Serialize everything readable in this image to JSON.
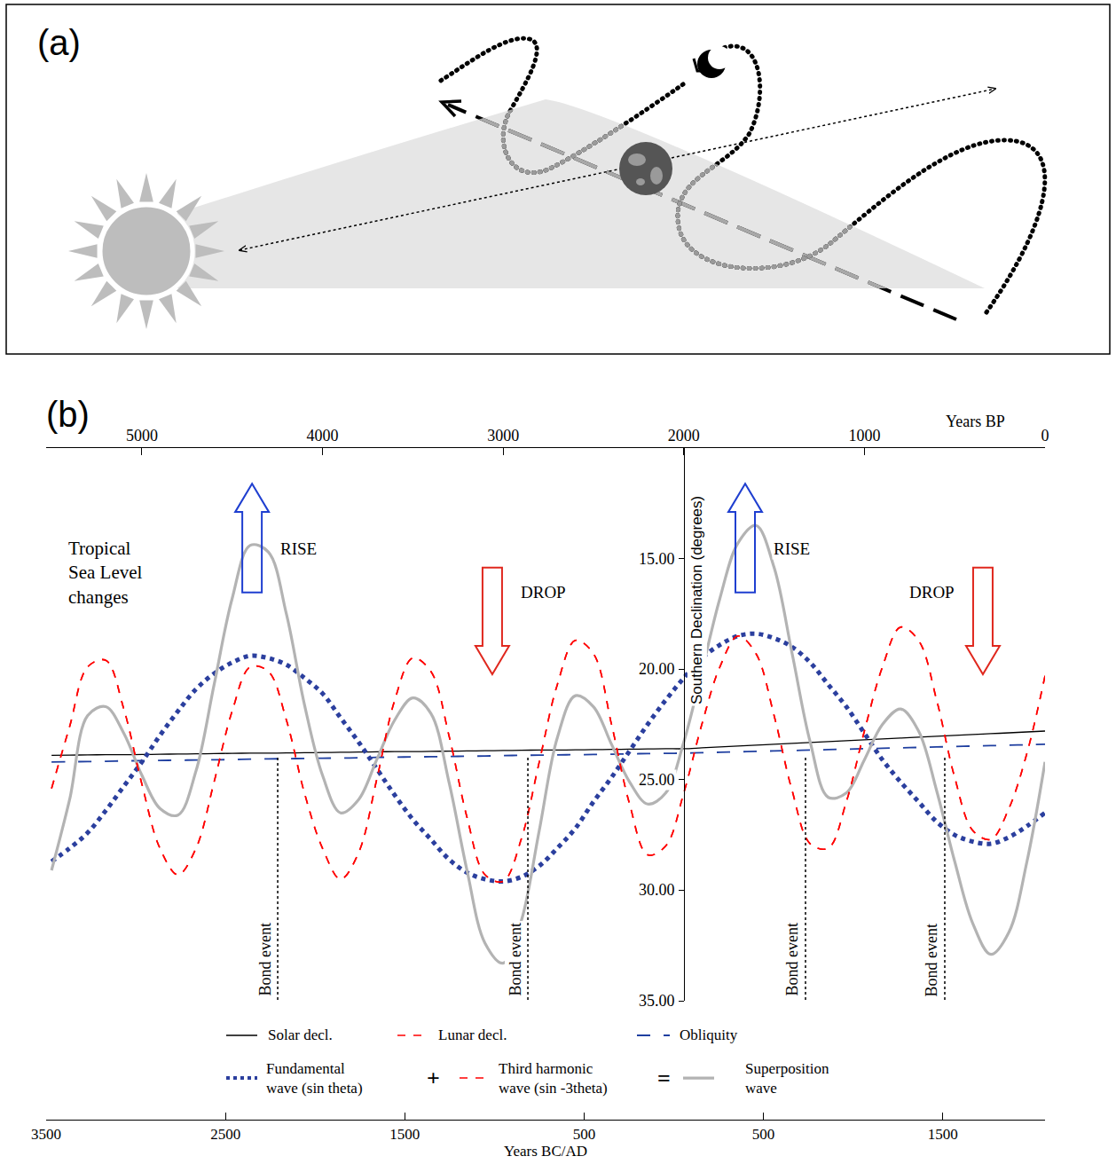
{
  "panel_a": {
    "label": "(a)"
  },
  "chart_data": {
    "type": "line",
    "label": "(b)",
    "xlabel": "Years BP",
    "xlim": [
      5530,
      0
    ],
    "xticks": [
      5000,
      4000,
      3000,
      2000,
      1000,
      0
    ],
    "x2label": "Years BC/AD",
    "x2lim": [
      -3500,
      2070
    ],
    "x2ticks": [
      {
        "value": -3500,
        "label": "3500"
      },
      {
        "value": -2500,
        "label": "2500"
      },
      {
        "value": -1500,
        "label": "1500"
      },
      {
        "value": -500,
        "label": "500"
      },
      {
        "value": 500,
        "label": "500"
      },
      {
        "value": 1500,
        "label": "1500"
      }
    ],
    "ylabel": "Southern Declination (degrees)",
    "ylim": [
      35,
      10
    ],
    "yticks": [
      {
        "value": 15,
        "label": "15.00"
      },
      {
        "value": 20,
        "label": "20.00"
      },
      {
        "value": 25,
        "label": "25.00"
      },
      {
        "value": 30,
        "label": "30.00"
      },
      {
        "value": 35,
        "label": "35.00"
      }
    ],
    "grid": false,
    "x": [
      5500,
      5400,
      5300,
      5200,
      5100,
      5000,
      4900,
      4800,
      4700,
      4600,
      4500,
      4400,
      4300,
      4200,
      4100,
      4000,
      3900,
      3800,
      3700,
      3600,
      3500,
      3400,
      3300,
      3200,
      3100,
      3000,
      2900,
      2800,
      2700,
      2600,
      2500,
      2400,
      2300,
      2200,
      2100,
      2000,
      1900,
      1800,
      1700,
      1600,
      1500,
      1400,
      1300,
      1200,
      1100,
      1000,
      900,
      800,
      700,
      600,
      500,
      400,
      300,
      200,
      100,
      0
    ],
    "series": [
      {
        "name": "Solar decl.",
        "color": "#000000",
        "line_style": "solid",
        "values": [
          23.9,
          23.89,
          23.88,
          23.87,
          23.87,
          23.86,
          23.85,
          23.84,
          23.83,
          23.82,
          23.81,
          23.8,
          23.8,
          23.79,
          23.78,
          23.77,
          23.76,
          23.75,
          23.74,
          23.73,
          23.73,
          23.72,
          23.71,
          23.7,
          23.69,
          23.68,
          23.67,
          23.66,
          23.66,
          23.65,
          23.64,
          23.63,
          23.62,
          23.61,
          23.6,
          23.6,
          23.56,
          23.52,
          23.48,
          23.44,
          23.4,
          23.36,
          23.32,
          23.28,
          23.24,
          23.2,
          23.16,
          23.12,
          23.08,
          23.04,
          23.0,
          22.96,
          22.92,
          22.88,
          22.84,
          22.8
        ]
      },
      {
        "name": "Lunar decl.",
        "color": "#ff0000",
        "line_style": "dash",
        "values": [
          25.4,
          22.6,
          19.9,
          19.6,
          21.8,
          25.2,
          28.1,
          29.3,
          28.1,
          25.1,
          21.9,
          19.9,
          20.1,
          22.3,
          25.6,
          28.1,
          29.5,
          28.3,
          25.0,
          21.4,
          19.5,
          20.1,
          23.0,
          26.7,
          29.3,
          29.6,
          27.7,
          24.2,
          20.7,
          18.7,
          19.3,
          22.5,
          26.1,
          28.4,
          28.0,
          25.6,
          22.5,
          19.9,
          18.5,
          19.3,
          22.1,
          25.5,
          27.9,
          28.1,
          26.0,
          22.8,
          19.9,
          18.1,
          18.7,
          21.4,
          24.9,
          27.3,
          27.7,
          26.3,
          23.8,
          20.3
        ]
      },
      {
        "name": "Obliquity",
        "color": "#1f3fa0",
        "line_style": "longdash",
        "values": [
          24.2,
          24.19,
          24.18,
          24.17,
          24.15,
          24.14,
          24.13,
          24.12,
          24.11,
          24.1,
          24.09,
          24.07,
          24.06,
          24.05,
          24.04,
          24.03,
          24.02,
          24.01,
          23.99,
          23.98,
          23.97,
          23.96,
          23.95,
          23.94,
          23.93,
          23.91,
          23.9,
          23.89,
          23.88,
          23.87,
          23.86,
          23.85,
          23.83,
          23.82,
          23.81,
          23.8,
          23.78,
          23.76,
          23.74,
          23.72,
          23.7,
          23.68,
          23.66,
          23.64,
          23.62,
          23.6,
          23.58,
          23.56,
          23.54,
          23.52,
          23.5,
          23.48,
          23.46,
          23.44,
          23.42,
          23.4
        ]
      },
      {
        "name": "Fundamental wave (sin theta)",
        "color": "#2b3f9e",
        "line_style": "dot",
        "values": [
          28.7,
          28.1,
          27.4,
          26.4,
          25.3,
          24.2,
          23.0,
          21.9,
          20.9,
          20.2,
          19.7,
          19.4,
          19.5,
          19.8,
          20.4,
          21.1,
          22.2,
          23.3,
          24.5,
          25.7,
          26.8,
          27.7,
          28.6,
          29.2,
          29.5,
          29.6,
          29.4,
          28.9,
          28.1,
          27.2,
          26.0,
          24.9,
          23.7,
          22.5,
          21.4,
          20.4,
          19.5,
          18.9,
          18.5,
          18.4,
          18.6,
          19.0,
          19.7,
          20.7,
          21.7,
          22.9,
          24.1,
          25.1,
          26.0,
          26.9,
          27.5,
          27.8,
          27.9,
          27.6,
          27.1,
          26.5
        ]
      },
      {
        "name": "Third harmonic wave (sin -3theta)",
        "color": "#ff0000",
        "line_style": "dash",
        "values": [
          25.4,
          22.6,
          19.9,
          19.6,
          21.8,
          25.2,
          28.1,
          29.3,
          28.1,
          25.1,
          21.9,
          19.9,
          20.1,
          22.3,
          25.6,
          28.1,
          29.5,
          28.3,
          25.0,
          21.4,
          19.5,
          20.1,
          23.0,
          26.7,
          29.3,
          29.6,
          27.7,
          24.2,
          20.7,
          18.7,
          19.3,
          22.5,
          26.1,
          28.4,
          28.0,
          25.6,
          22.5,
          19.9,
          18.5,
          19.3,
          22.1,
          25.5,
          27.9,
          28.1,
          26.0,
          22.8,
          19.9,
          18.1,
          18.7,
          21.4,
          24.9,
          27.3,
          27.7,
          26.3,
          23.8,
          20.3
        ]
      },
      {
        "name": "Superposition wave",
        "color": "#b3b3b3",
        "line_style": "solid",
        "values": [
          29.1,
          25.9,
          22.1,
          21.7,
          22.9,
          24.8,
          26.3,
          26.6,
          24.6,
          20.7,
          16.8,
          14.4,
          14.7,
          17.5,
          21.6,
          24.8,
          26.5,
          25.9,
          24.1,
          22.3,
          21.3,
          22.0,
          25.1,
          29.1,
          32.4,
          33.3,
          31.4,
          27.3,
          23.1,
          21.2,
          21.7,
          23.4,
          25.1,
          26.1,
          25.6,
          23.3,
          20.1,
          16.8,
          14.3,
          13.5,
          15.4,
          19.3,
          23.3,
          25.8,
          25.6,
          24.1,
          22.5,
          21.8,
          22.8,
          25.5,
          28.7,
          31.5,
          32.9,
          31.9,
          28.7,
          24.2
        ]
      }
    ],
    "annotations": [
      {
        "text": "Tropical Sea Level changes"
      },
      {
        "text": "RISE",
        "x": 4390,
        "direction": "up"
      },
      {
        "text": "DROP",
        "x": 3060,
        "direction": "down"
      },
      {
        "text": "RISE",
        "x": 1660,
        "direction": "up"
      },
      {
        "text": "DROP",
        "x": 344,
        "direction": "down"
      }
    ],
    "bond_events": [
      {
        "x": 4248,
        "y_range": [
          24,
          35
        ],
        "label": "Bond event"
      },
      {
        "x": 2863,
        "y_range": [
          24,
          35
        ],
        "label": "Bond event"
      },
      {
        "x": 1326,
        "y_range": [
          24,
          35
        ],
        "label": "Bond event"
      },
      {
        "x": 555,
        "y_range": [
          24,
          35
        ],
        "label": "Bond event"
      }
    ],
    "legend_signs": [
      "+",
      "="
    ]
  }
}
